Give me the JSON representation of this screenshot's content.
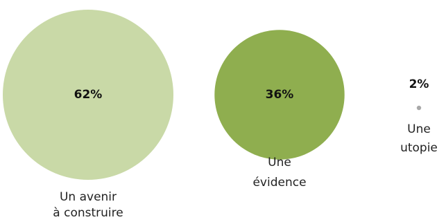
{
  "chart_data": {
    "type": "bubble",
    "categories": [
      "Un avenir à construire",
      "Une évidence",
      "Une utopie"
    ],
    "values": [
      62,
      36,
      2
    ],
    "value_labels": [
      "62%",
      "36%",
      "2%"
    ],
    "category_label_lines": [
      [
        "Un avenir",
        "à construire"
      ],
      [
        "Une",
        "évidence"
      ],
      [
        "Une",
        "utopie"
      ]
    ],
    "colors": [
      "#c9d9a7",
      "#8fae4f",
      "#a8a8a8"
    ],
    "title": "",
    "legend": "none"
  }
}
